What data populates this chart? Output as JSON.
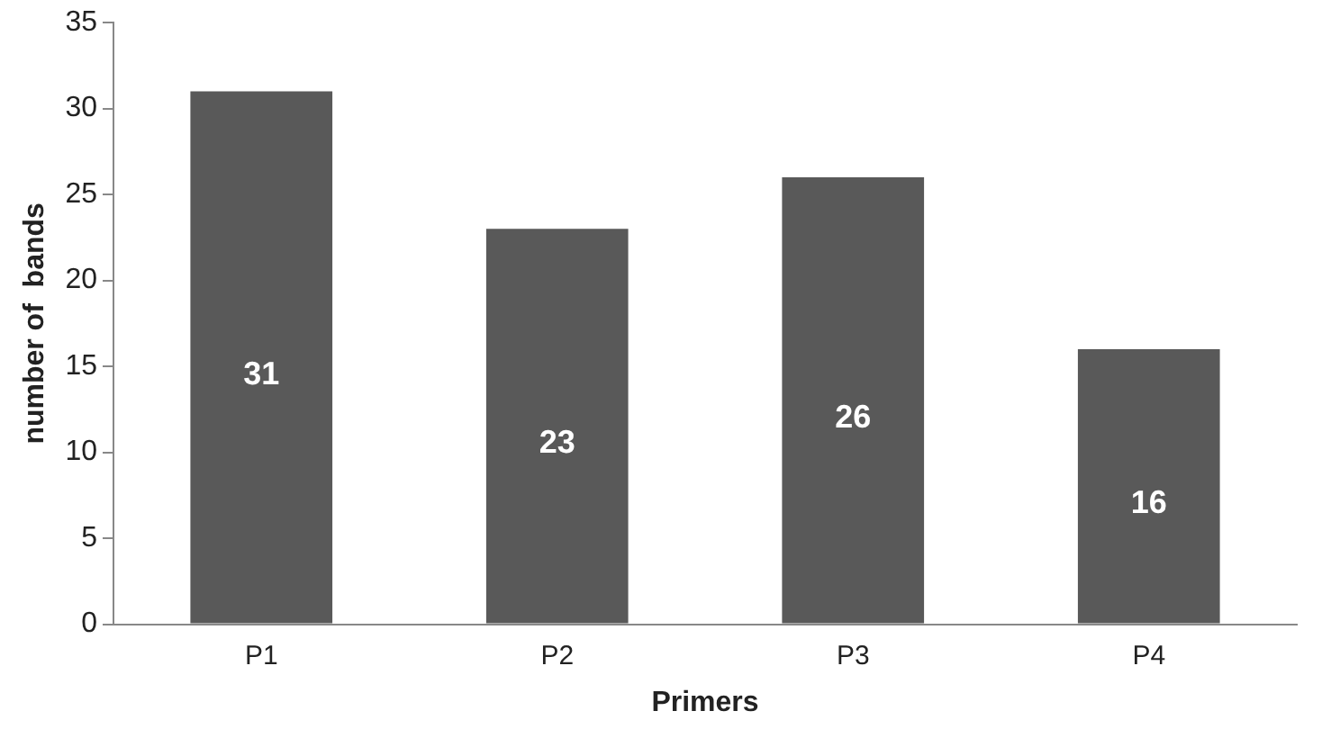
{
  "chart_data": {
    "type": "bar",
    "xlabel": "Primers",
    "ylabel": "number of  bands",
    "categories": [
      "P1",
      "P2",
      "P3",
      "P4"
    ],
    "values": [
      31,
      23,
      26,
      16
    ],
    "color": "#595959",
    "ylim": [
      0,
      35
    ],
    "yticks": [
      0,
      5,
      10,
      15,
      20,
      25,
      30,
      35
    ],
    "grid": false,
    "legend": false,
    "data_labels": true
  }
}
